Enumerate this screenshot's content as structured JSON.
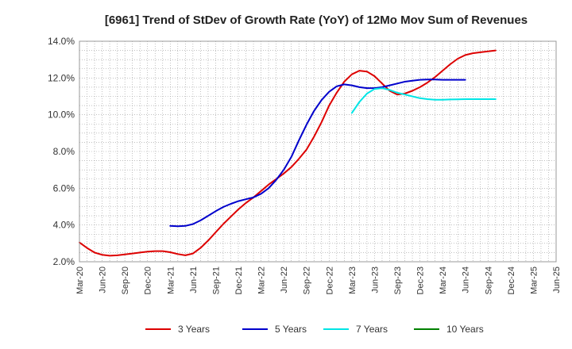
{
  "chart_data": {
    "type": "line",
    "title": "[6961]  Trend of StDev of Growth Rate (YoY) of 12Mo Mov Sum of Revenues",
    "xlabel": "",
    "ylabel": "",
    "ylim": [
      2.0,
      14.0
    ],
    "y_ticks": [
      2.0,
      4.0,
      6.0,
      8.0,
      10.0,
      12.0,
      14.0
    ],
    "y_tick_labels": [
      "2.0%",
      "4.0%",
      "6.0%",
      "8.0%",
      "10.0%",
      "12.0%",
      "14.0%"
    ],
    "x_tick_labels": [
      "Mar-20",
      "Jun-20",
      "Sep-20",
      "Dec-20",
      "Mar-21",
      "Jun-21",
      "Sep-21",
      "Dec-21",
      "Mar-22",
      "Jun-22",
      "Sep-22",
      "Dec-22",
      "Mar-23",
      "Jun-23",
      "Sep-23",
      "Dec-23",
      "Mar-24",
      "Jun-24",
      "Sep-24",
      "Dec-24",
      "Mar-25",
      "Jun-25"
    ],
    "grid": true,
    "legend_position": "bottom",
    "series": [
      {
        "name": "3 Years",
        "color": "#dd0000",
        "start_index": 0,
        "values": [
          3.05,
          2.75,
          2.5,
          2.38,
          2.33,
          2.35,
          2.4,
          2.45,
          2.5,
          2.55,
          2.58,
          2.58,
          2.52,
          2.42,
          2.35,
          2.45,
          2.75,
          3.15,
          3.6,
          4.05,
          4.45,
          4.85,
          5.2,
          5.5,
          5.85,
          6.2,
          6.5,
          6.8,
          7.15,
          7.6,
          8.1,
          8.8,
          9.6,
          10.5,
          11.2,
          11.8,
          12.2,
          12.4,
          12.35,
          12.1,
          11.7,
          11.3,
          11.1,
          11.15,
          11.3,
          11.5,
          11.75,
          12.05,
          12.4,
          12.75,
          13.05,
          13.25,
          13.35,
          13.4,
          13.45,
          13.5
        ]
      },
      {
        "name": "5 Years",
        "color": "#0000cc",
        "start_index": 12,
        "values": [
          3.95,
          3.93,
          3.95,
          4.05,
          4.25,
          4.5,
          4.75,
          4.98,
          5.15,
          5.3,
          5.4,
          5.5,
          5.7,
          6.0,
          6.45,
          7.0,
          7.7,
          8.6,
          9.45,
          10.2,
          10.8,
          11.25,
          11.55,
          11.65,
          11.6,
          11.5,
          11.45,
          11.45,
          11.5,
          11.6,
          11.7,
          11.8,
          11.85,
          11.9,
          11.92,
          11.92,
          11.9,
          11.9,
          11.9,
          11.9
        ]
      },
      {
        "name": "7 Years",
        "color": "#00e5e5",
        "start_index": 36,
        "values": [
          10.1,
          10.7,
          11.15,
          11.4,
          11.45,
          11.35,
          11.2,
          11.1,
          11.0,
          10.9,
          10.85,
          10.82,
          10.82,
          10.83,
          10.84,
          10.85,
          10.85,
          10.85,
          10.85,
          10.85
        ]
      },
      {
        "name": "10 Years",
        "color": "#008000",
        "start_index": 0,
        "values": []
      }
    ]
  }
}
